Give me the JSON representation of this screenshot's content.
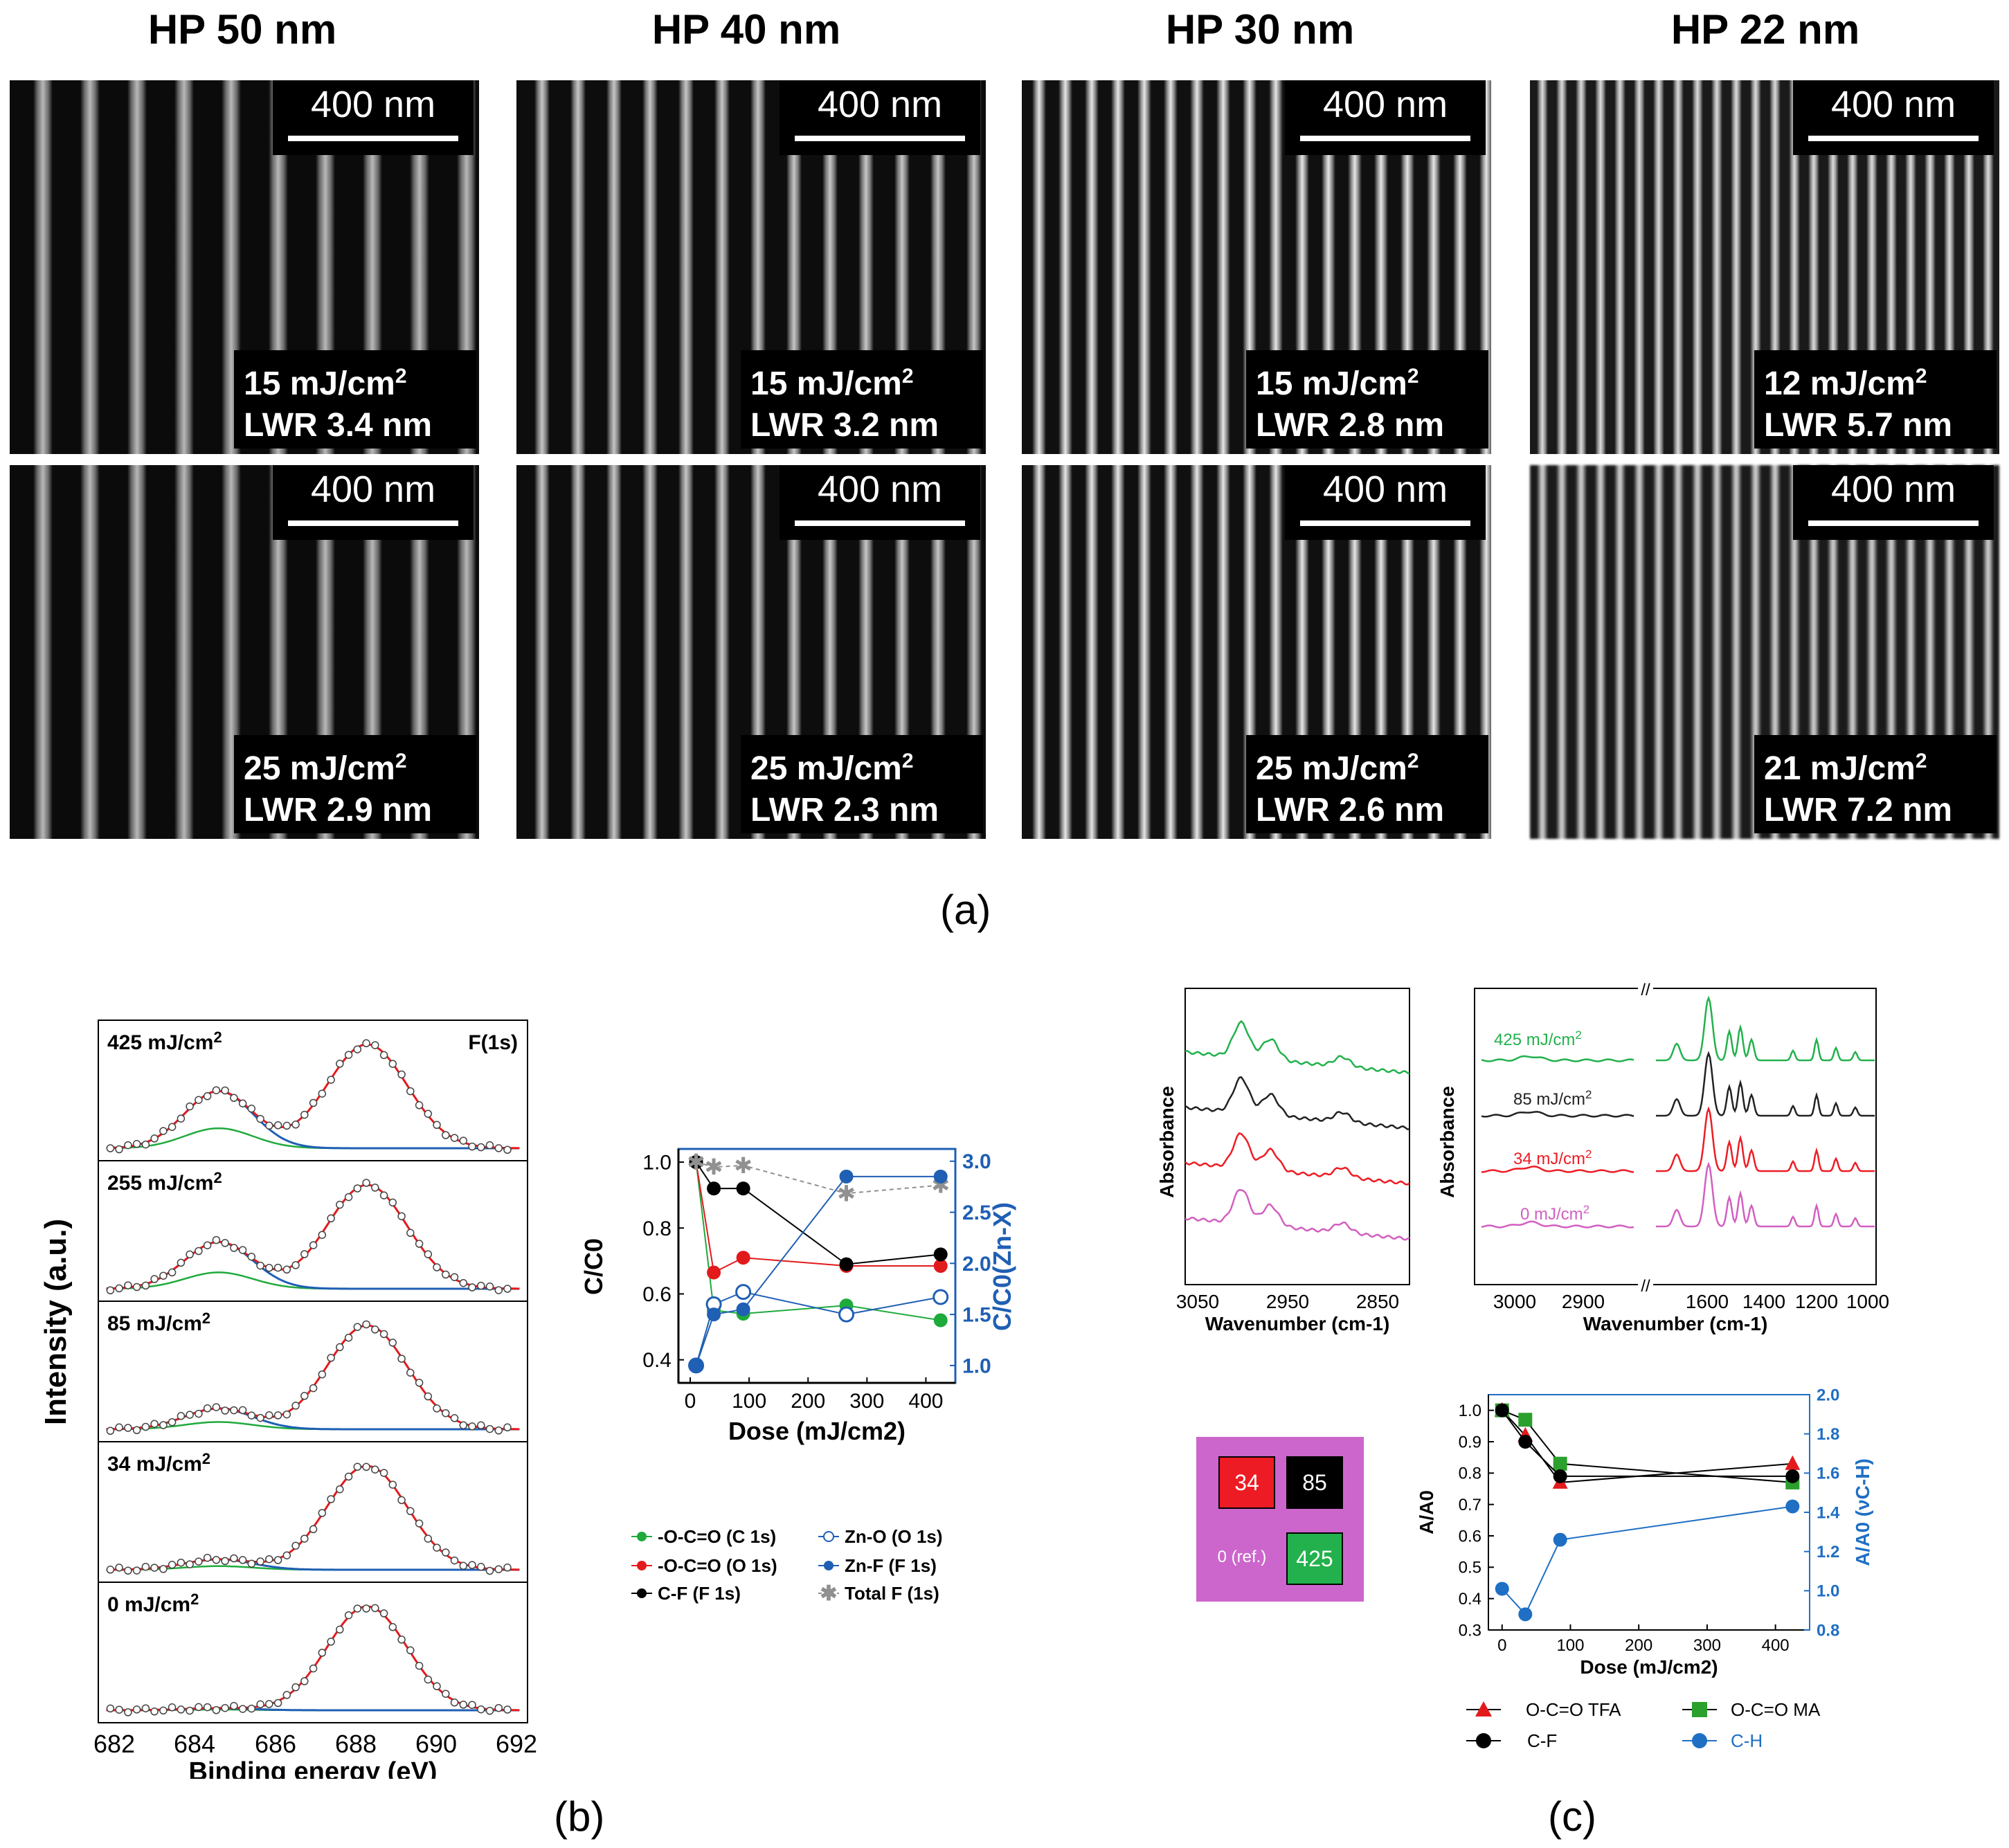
{
  "panel_a": {
    "label": "(a)",
    "columns": [
      {
        "title": "HP 50 nm",
        "scale": "400 nm",
        "rows": [
          {
            "dose": "15 mJ/cm",
            "sup": "2",
            "lwr": "LWR 3.4 nm"
          },
          {
            "dose": "25 mJ/cm",
            "sup": "2",
            "lwr": "LWR 2.9 nm"
          }
        ]
      },
      {
        "title": "HP 40 nm",
        "scale": "400 nm",
        "rows": [
          {
            "dose": "15 mJ/cm",
            "sup": "2",
            "lwr": "LWR 3.2 nm"
          },
          {
            "dose": "25 mJ/cm",
            "sup": "2",
            "lwr": "LWR 2.3 nm"
          }
        ]
      },
      {
        "title": "HP 30 nm",
        "scale": "400 nm",
        "rows": [
          {
            "dose": "15 mJ/cm",
            "sup": "2",
            "lwr": "LWR 2.8 nm"
          },
          {
            "dose": "25 mJ/cm",
            "sup": "2",
            "lwr": "LWR 2.6 nm"
          }
        ]
      },
      {
        "title": "HP 22 nm",
        "scale": "400 nm",
        "rows": [
          {
            "dose": "12 mJ/cm",
            "sup": "2",
            "lwr": "LWR 5.7 nm"
          },
          {
            "dose": "21 mJ/cm",
            "sup": "2",
            "lwr": "LWR 7.2 nm"
          }
        ]
      }
    ]
  },
  "panel_b": {
    "label": "(b)",
    "xps": {
      "ylabel": "Intensity (a.u.)",
      "xlabel": "Binding energy (eV)",
      "xticks": [
        "682",
        "684",
        "686",
        "688",
        "690",
        "692"
      ],
      "element_label": "F(1s)",
      "spectra": [
        {
          "label": "425 mJ/cm",
          "sup": "2"
        },
        {
          "label": "255 mJ/cm",
          "sup": "2"
        },
        {
          "label": "85 mJ/cm",
          "sup": "2"
        },
        {
          "label": "34 mJ/cm",
          "sup": "2"
        },
        {
          "label": "0 mJ/cm",
          "sup": "2"
        }
      ]
    },
    "legend": [
      {
        "text": "-O-C=O (C 1s)",
        "color": "#1faa3c",
        "marker": "filled"
      },
      {
        "text": "Zn-O (O 1s)",
        "color": "#1f5fb4",
        "marker": "open"
      },
      {
        "text": "-O-C=O (O 1s)",
        "color": "#e31a1c",
        "marker": "filled"
      },
      {
        "text": "Zn-F (F 1s)",
        "color": "#1f5fb4",
        "marker": "filled"
      },
      {
        "text": "C-F (F 1s)",
        "color": "#000000",
        "marker": "filled"
      },
      {
        "text": "Total F (1s)",
        "color": "#909090",
        "marker": "star"
      }
    ]
  },
  "panel_c": {
    "label": "(c)",
    "ftir_left": {
      "ylabel": "Absorbance",
      "xlabel": "Wavenumber (cm-1)",
      "xticks": [
        "3050",
        "2950",
        "2850"
      ]
    },
    "ftir_right": {
      "ylabel": "Absorbance",
      "xlabel": "Wavenumber (cm-1)",
      "xticks": [
        "3000",
        "2900",
        "1600",
        "1400",
        "1200",
        "1000"
      ],
      "spectra": [
        {
          "label": "425 mJ/cm",
          "sup": "2",
          "color": "#22b14c"
        },
        {
          "label": "85 mJ/cm",
          "sup": "2",
          "color": "#222222"
        },
        {
          "label": "34 mJ/cm",
          "sup": "2",
          "color": "#ed1c24"
        },
        {
          "label": "0 mJ/cm",
          "sup": "2",
          "color": "#d25fc0"
        }
      ]
    },
    "dose_map": {
      "bg": "#cc66cc",
      "cells": [
        "34",
        "85",
        "0 (ref.)",
        "425"
      ]
    },
    "legend": [
      {
        "text": "O-C=O TFA",
        "color": "#e31a1c",
        "marker": "triangle"
      },
      {
        "text": "O-C=O MA",
        "color": "#2ca02c",
        "marker": "square"
      },
      {
        "text": "C-F",
        "color": "#000000",
        "marker": "circle"
      },
      {
        "text": "C-H",
        "color": "#1f6fc4",
        "marker": "circle"
      }
    ]
  },
  "chart_data": [
    {
      "type": "line",
      "title": "",
      "xlabel": "Dose (mJ/cm2)",
      "ylabel": "C/C0",
      "y2label": "C/C0(Zn-X)",
      "xlim": [
        -20,
        450
      ],
      "ylim": [
        0.33,
        1.04
      ],
      "y2lim": [
        0.83,
        3.12
      ],
      "xticks": [
        0,
        100,
        200,
        300,
        400
      ],
      "yticks": [
        0.4,
        0.6,
        0.8,
        1.0
      ],
      "y2ticks": [
        1.0,
        1.5,
        2.0,
        2.5,
        3.0
      ],
      "series": [
        {
          "name": "-O-C=O (C 1s)",
          "axis": "left",
          "color": "#1faa3c",
          "marker": "filled",
          "x": [
            10,
            40,
            90,
            265,
            425
          ],
          "y": [
            1.0,
            0.55,
            0.54,
            0.565,
            0.52
          ]
        },
        {
          "name": "-O-C=O (O 1s)",
          "axis": "left",
          "color": "#e31a1c",
          "marker": "filled",
          "x": [
            10,
            40,
            90,
            265,
            425
          ],
          "y": [
            1.0,
            0.665,
            0.71,
            0.685,
            0.685
          ]
        },
        {
          "name": "C-F (F 1s)",
          "axis": "left",
          "color": "#000000",
          "marker": "filled",
          "x": [
            10,
            40,
            90,
            265,
            425
          ],
          "y": [
            1.0,
            0.92,
            0.92,
            0.69,
            0.72
          ]
        },
        {
          "name": "Total F (1s)",
          "axis": "left",
          "color": "#909090",
          "marker": "star",
          "dashed": true,
          "x": [
            10,
            40,
            90,
            265,
            425
          ],
          "y": [
            1.0,
            0.985,
            0.99,
            0.905,
            0.93
          ]
        },
        {
          "name": "Zn-O (O 1s)",
          "axis": "right",
          "color": "#1f5fb4",
          "marker": "open",
          "x": [
            10,
            40,
            90,
            265,
            425
          ],
          "y": [
            1.0,
            1.6,
            1.72,
            1.5,
            1.67
          ]
        },
        {
          "name": "Zn-F (F 1s)",
          "axis": "right",
          "color": "#1f5fb4",
          "marker": "filled",
          "x": [
            10,
            40,
            90,
            265,
            425
          ],
          "y": [
            1.0,
            1.5,
            1.55,
            2.85,
            2.85
          ]
        }
      ]
    },
    {
      "type": "line",
      "title": "",
      "xlabel": "Dose (mJ/cm2)",
      "ylabel": "A/A0",
      "y2label": "A/A0 (νC-H)",
      "xlim": [
        -20,
        450
      ],
      "ylim": [
        0.3,
        1.05
      ],
      "y2lim": [
        0.8,
        2.0
      ],
      "xticks": [
        0,
        100,
        200,
        300,
        400
      ],
      "yticks": [
        0.3,
        0.4,
        0.5,
        0.6,
        0.7,
        0.8,
        0.9,
        1.0
      ],
      "y2ticks": [
        0.8,
        1.0,
        1.2,
        1.4,
        1.6,
        1.8,
        2.0
      ],
      "series": [
        {
          "name": "O-C=O TFA",
          "axis": "left",
          "color": "#e31a1c",
          "marker": "triangle",
          "x": [
            0,
            34,
            85,
            425
          ],
          "y": [
            1.0,
            0.92,
            0.77,
            0.83
          ]
        },
        {
          "name": "O-C=O MA",
          "axis": "left",
          "color": "#2ca02c",
          "marker": "square",
          "x": [
            0,
            34,
            85,
            425
          ],
          "y": [
            1.0,
            0.97,
            0.83,
            0.77
          ]
        },
        {
          "name": "C-F",
          "axis": "left",
          "color": "#000000",
          "marker": "circle",
          "x": [
            0,
            34,
            85,
            425
          ],
          "y": [
            1.0,
            0.9,
            0.79,
            0.79
          ]
        },
        {
          "name": "C-H",
          "axis": "right",
          "color": "#1f6fc4",
          "marker": "circle",
          "x": [
            0,
            34,
            85,
            425
          ],
          "y": [
            1.01,
            0.88,
            1.26,
            1.43
          ]
        }
      ]
    }
  ]
}
